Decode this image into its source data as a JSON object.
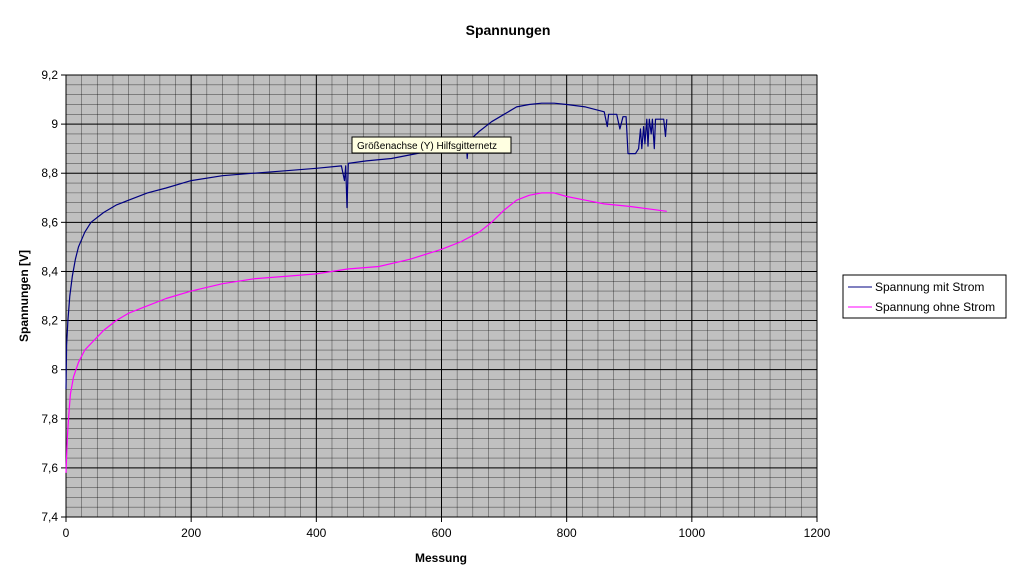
{
  "chart_data": {
    "type": "line",
    "title": "Spannungen",
    "xlabel": "Messung",
    "ylabel": "Spannungen [V]",
    "xlim": [
      0,
      1200
    ],
    "ylim": [
      7.4,
      9.2
    ],
    "x_ticks": [
      0,
      200,
      400,
      600,
      800,
      1000,
      1200
    ],
    "x_tick_labels": [
      "0",
      "200",
      "400",
      "600",
      "800",
      "1000",
      "1200"
    ],
    "y_ticks": [
      7.4,
      7.6,
      7.8,
      8.0,
      8.2,
      8.4,
      8.6,
      8.8,
      9.0,
      9.2
    ],
    "y_tick_labels": [
      "7,4",
      "7,6",
      "7,8",
      "8",
      "8,2",
      "8,4",
      "8,6",
      "8,8",
      "9",
      "9,2"
    ],
    "grid": true,
    "plot_background": "#c0c0c0",
    "legend_position": "right",
    "tooltip": "Größenachse (Y) Hilfsgitternetz",
    "series": [
      {
        "name": "Spannung mit Strom",
        "color": "#000080",
        "points": [
          [
            0,
            7.92
          ],
          [
            1,
            8.1
          ],
          [
            3,
            8.2
          ],
          [
            6,
            8.3
          ],
          [
            10,
            8.38
          ],
          [
            15,
            8.45
          ],
          [
            20,
            8.5
          ],
          [
            30,
            8.56
          ],
          [
            40,
            8.6
          ],
          [
            60,
            8.64
          ],
          [
            80,
            8.67
          ],
          [
            100,
            8.69
          ],
          [
            130,
            8.72
          ],
          [
            160,
            8.74
          ],
          [
            200,
            8.77
          ],
          [
            250,
            8.79
          ],
          [
            300,
            8.8
          ],
          [
            350,
            8.81
          ],
          [
            400,
            8.82
          ],
          [
            440,
            8.83
          ],
          [
            445,
            8.77
          ],
          [
            447,
            8.83
          ],
          [
            449,
            8.66
          ],
          [
            451,
            8.84
          ],
          [
            480,
            8.85
          ],
          [
            520,
            8.86
          ],
          [
            560,
            8.88
          ],
          [
            600,
            8.9
          ],
          [
            640,
            8.92
          ],
          [
            641,
            8.86
          ],
          [
            643,
            8.93
          ],
          [
            660,
            8.97
          ],
          [
            680,
            9.01
          ],
          [
            700,
            9.04
          ],
          [
            720,
            9.07
          ],
          [
            740,
            9.08
          ],
          [
            760,
            9.085
          ],
          [
            780,
            9.085
          ],
          [
            800,
            9.08
          ],
          [
            830,
            9.07
          ],
          [
            860,
            9.05
          ],
          [
            865,
            8.99
          ],
          [
            867,
            9.04
          ],
          [
            880,
            9.04
          ],
          [
            885,
            8.98
          ],
          [
            890,
            9.03
          ],
          [
            895,
            9.03
          ],
          [
            898,
            8.88
          ],
          [
            910,
            8.88
          ],
          [
            915,
            8.9
          ],
          [
            918,
            8.98
          ],
          [
            920,
            8.9
          ],
          [
            923,
            8.99
          ],
          [
            925,
            8.92
          ],
          [
            928,
            9.02
          ],
          [
            930,
            8.91
          ],
          [
            932,
            9.02
          ],
          [
            935,
            8.96
          ],
          [
            937,
            9.02
          ],
          [
            940,
            8.9
          ],
          [
            942,
            9.02
          ],
          [
            950,
            9.02
          ],
          [
            955,
            9.02
          ],
          [
            958,
            8.95
          ],
          [
            960,
            9.02
          ]
        ]
      },
      {
        "name": "Spannung ohne Strom",
        "color": "#ff00ff",
        "points": [
          [
            0,
            7.58
          ],
          [
            2,
            7.72
          ],
          [
            4,
            7.8
          ],
          [
            7,
            7.9
          ],
          [
            12,
            7.97
          ],
          [
            20,
            8.03
          ],
          [
            30,
            8.08
          ],
          [
            45,
            8.12
          ],
          [
            60,
            8.16
          ],
          [
            80,
            8.2
          ],
          [
            100,
            8.23
          ],
          [
            130,
            8.26
          ],
          [
            160,
            8.29
          ],
          [
            200,
            8.32
          ],
          [
            250,
            8.35
          ],
          [
            300,
            8.37
          ],
          [
            350,
            8.38
          ],
          [
            400,
            8.39
          ],
          [
            450,
            8.41
          ],
          [
            500,
            8.42
          ],
          [
            550,
            8.45
          ],
          [
            600,
            8.49
          ],
          [
            630,
            8.52
          ],
          [
            660,
            8.56
          ],
          [
            680,
            8.6
          ],
          [
            700,
            8.65
          ],
          [
            720,
            8.69
          ],
          [
            740,
            8.71
          ],
          [
            760,
            8.72
          ],
          [
            780,
            8.72
          ],
          [
            800,
            8.705
          ],
          [
            830,
            8.69
          ],
          [
            860,
            8.675
          ],
          [
            900,
            8.665
          ],
          [
            930,
            8.655
          ],
          [
            960,
            8.645
          ]
        ]
      }
    ]
  }
}
